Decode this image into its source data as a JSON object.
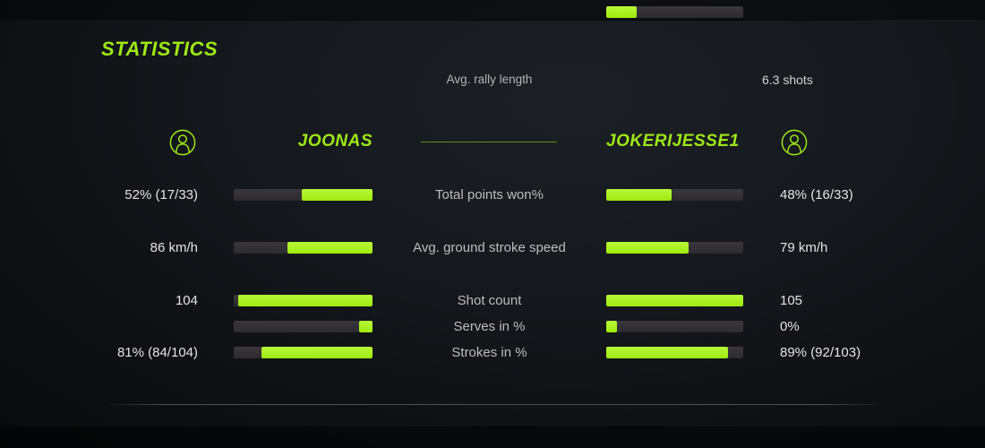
{
  "title": "STATISTICS",
  "colors": {
    "accent_text": "#9fe716",
    "bar_fill": "#abf521",
    "bar_track": "#343036",
    "background": "#0d0f12"
  },
  "summary": {
    "label": "Avg. rally length",
    "value": "6.3 shots",
    "percent": 22
  },
  "players": {
    "left": {
      "name": "JOONAS",
      "icon": "person-circle-icon"
    },
    "right": {
      "name": "JOKERIJESSE1",
      "icon": "person-circle-icon"
    }
  },
  "stats": [
    {
      "label": "Total points won%",
      "left_value": "52% (17/33)",
      "left_percent": 51,
      "right_value": "48% (16/33)",
      "right_percent": 48
    },
    {
      "label": "Avg. ground stroke speed",
      "left_value": "86 km/h",
      "left_percent": 61,
      "right_value": "79 km/h",
      "right_percent": 60
    },
    {
      "label": "Shot count",
      "left_value": "104",
      "left_percent": 97,
      "right_value": "105",
      "right_percent": 100
    },
    {
      "label": "Serves in %",
      "left_value": "",
      "left_percent": 10,
      "right_value": "0%",
      "right_percent": 8
    },
    {
      "label": "Strokes in %",
      "left_value": "81% (84/104)",
      "left_percent": 80,
      "right_value": "89% (92/103)",
      "right_percent": 89
    }
  ]
}
